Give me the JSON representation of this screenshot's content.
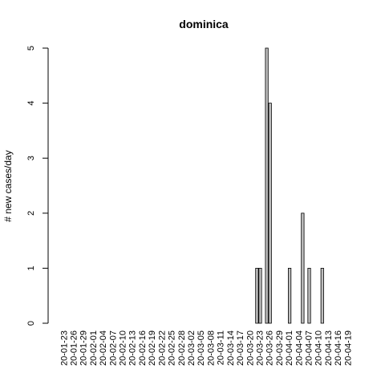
{
  "chart_data": {
    "type": "bar",
    "title": "dominica",
    "xlabel": "",
    "ylabel": "# new cases/day",
    "ylim": [
      0,
      5
    ],
    "yticks": [
      0,
      1,
      2,
      3,
      4,
      5
    ],
    "xtick_labels": [
      "20-01-23",
      "20-01-26",
      "20-01-29",
      "20-02-01",
      "20-02-04",
      "20-02-07",
      "20-02-10",
      "20-02-13",
      "20-02-16",
      "20-02-19",
      "20-02-22",
      "20-02-25",
      "20-02-28",
      "20-03-02",
      "20-03-05",
      "20-03-08",
      "20-03-11",
      "20-03-14",
      "20-03-17",
      "20-03-20",
      "20-03-23",
      "20-03-26",
      "20-03-29",
      "20-04-01",
      "20-04-04",
      "20-04-07",
      "20-04-10",
      "20-04-13",
      "20-04-16",
      "20-04-19"
    ],
    "categories": [
      "20-01-22",
      "20-01-23",
      "20-01-24",
      "20-01-25",
      "20-01-26",
      "20-01-27",
      "20-01-28",
      "20-01-29",
      "20-01-30",
      "20-01-31",
      "20-02-01",
      "20-02-02",
      "20-02-03",
      "20-02-04",
      "20-02-05",
      "20-02-06",
      "20-02-07",
      "20-02-08",
      "20-02-09",
      "20-02-10",
      "20-02-11",
      "20-02-12",
      "20-02-13",
      "20-02-14",
      "20-02-15",
      "20-02-16",
      "20-02-17",
      "20-02-18",
      "20-02-19",
      "20-02-20",
      "20-02-21",
      "20-02-22",
      "20-02-23",
      "20-02-24",
      "20-02-25",
      "20-02-26",
      "20-02-27",
      "20-02-28",
      "20-02-29",
      "20-03-01",
      "20-03-02",
      "20-03-03",
      "20-03-04",
      "20-03-05",
      "20-03-06",
      "20-03-07",
      "20-03-08",
      "20-03-09",
      "20-03-10",
      "20-03-11",
      "20-03-12",
      "20-03-13",
      "20-03-14",
      "20-03-15",
      "20-03-16",
      "20-03-17",
      "20-03-18",
      "20-03-19",
      "20-03-20",
      "20-03-21",
      "20-03-22",
      "20-03-23",
      "20-03-24",
      "20-03-25",
      "20-03-26",
      "20-03-27",
      "20-03-28",
      "20-03-29",
      "20-03-30",
      "20-03-31",
      "20-04-01",
      "20-04-02",
      "20-04-03",
      "20-04-04",
      "20-04-05",
      "20-04-06",
      "20-04-07",
      "20-04-08",
      "20-04-09",
      "20-04-10",
      "20-04-11",
      "20-04-12",
      "20-04-13",
      "20-04-14",
      "20-04-15",
      "20-04-16",
      "20-04-17",
      "20-04-18",
      "20-04-19",
      "20-04-20"
    ],
    "values": [
      0,
      0,
      0,
      0,
      0,
      0,
      0,
      0,
      0,
      0,
      0,
      0,
      0,
      0,
      0,
      0,
      0,
      0,
      0,
      0,
      0,
      0,
      0,
      0,
      0,
      0,
      0,
      0,
      0,
      0,
      0,
      0,
      0,
      0,
      0,
      0,
      0,
      0,
      0,
      0,
      0,
      0,
      0,
      0,
      0,
      0,
      0,
      0,
      0,
      0,
      0,
      0,
      0,
      0,
      0,
      0,
      0,
      0,
      0,
      0,
      1,
      1,
      0,
      5,
      4,
      0,
      0,
      0,
      0,
      0,
      1,
      0,
      0,
      0,
      2,
      0,
      1,
      0,
      0,
      0,
      1,
      0,
      0,
      0,
      0,
      0,
      0,
      0,
      0,
      0
    ],
    "grid": false,
    "legend": "none",
    "bar_color": "#bebebe",
    "edge_color": "#000000"
  }
}
